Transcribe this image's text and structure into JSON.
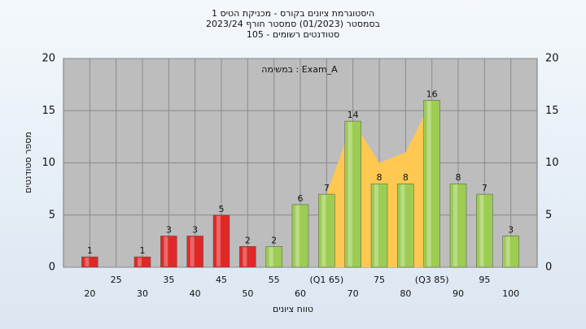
{
  "chart_data": {
    "type": "bar",
    "title": [
      "היסטוגרמת ציונים בקורס - מכניקת הטיס 1",
      "בסמסטר (01/2023) סמסטר חורף 2023/24",
      "סטודנטים רשומים - 105"
    ],
    "annotation": "במשימה : Exam_A",
    "xlabel": "טווח ציונים",
    "ylabel": "מספר סטודנטים",
    "x": [
      20,
      25,
      30,
      35,
      40,
      45,
      50,
      55,
      60,
      65,
      70,
      75,
      80,
      85,
      90,
      95,
      100
    ],
    "values": [
      1,
      null,
      1,
      3,
      3,
      5,
      2,
      2,
      6,
      7,
      14,
      8,
      8,
      16,
      8,
      7,
      3
    ],
    "colors": [
      "#e02828",
      "#e02828",
      "#e02828",
      "#e02828",
      "#e02828",
      "#e02828",
      "#e02828",
      "#9ccc52",
      "#9ccc52",
      "#9ccc52",
      "#9ccc52",
      "#9ccc52",
      "#9ccc52",
      "#9ccc52",
      "#9ccc52",
      "#9ccc52",
      "#9ccc52"
    ],
    "area": {
      "color": "#ffc850",
      "values": [
        null,
        null,
        null,
        null,
        null,
        null,
        null,
        null,
        null,
        7,
        14,
        10,
        11,
        16,
        null,
        null,
        null
      ]
    },
    "xlim": [
      15,
      105
    ],
    "xticks": [
      20,
      25,
      30,
      35,
      40,
      45,
      50,
      55,
      60,
      {
        "value": 65,
        "label": "(Q1 65)"
      },
      70,
      75,
      80,
      {
        "value": 85,
        "label": "(Q3 85)"
      },
      90,
      95,
      100
    ],
    "ylim": [
      0,
      20
    ],
    "yticks": [
      0,
      5,
      10,
      15,
      20
    ],
    "y2lim": [
      0,
      20
    ],
    "y2ticks": [
      0,
      5,
      10,
      15,
      20
    ],
    "grid": true
  }
}
